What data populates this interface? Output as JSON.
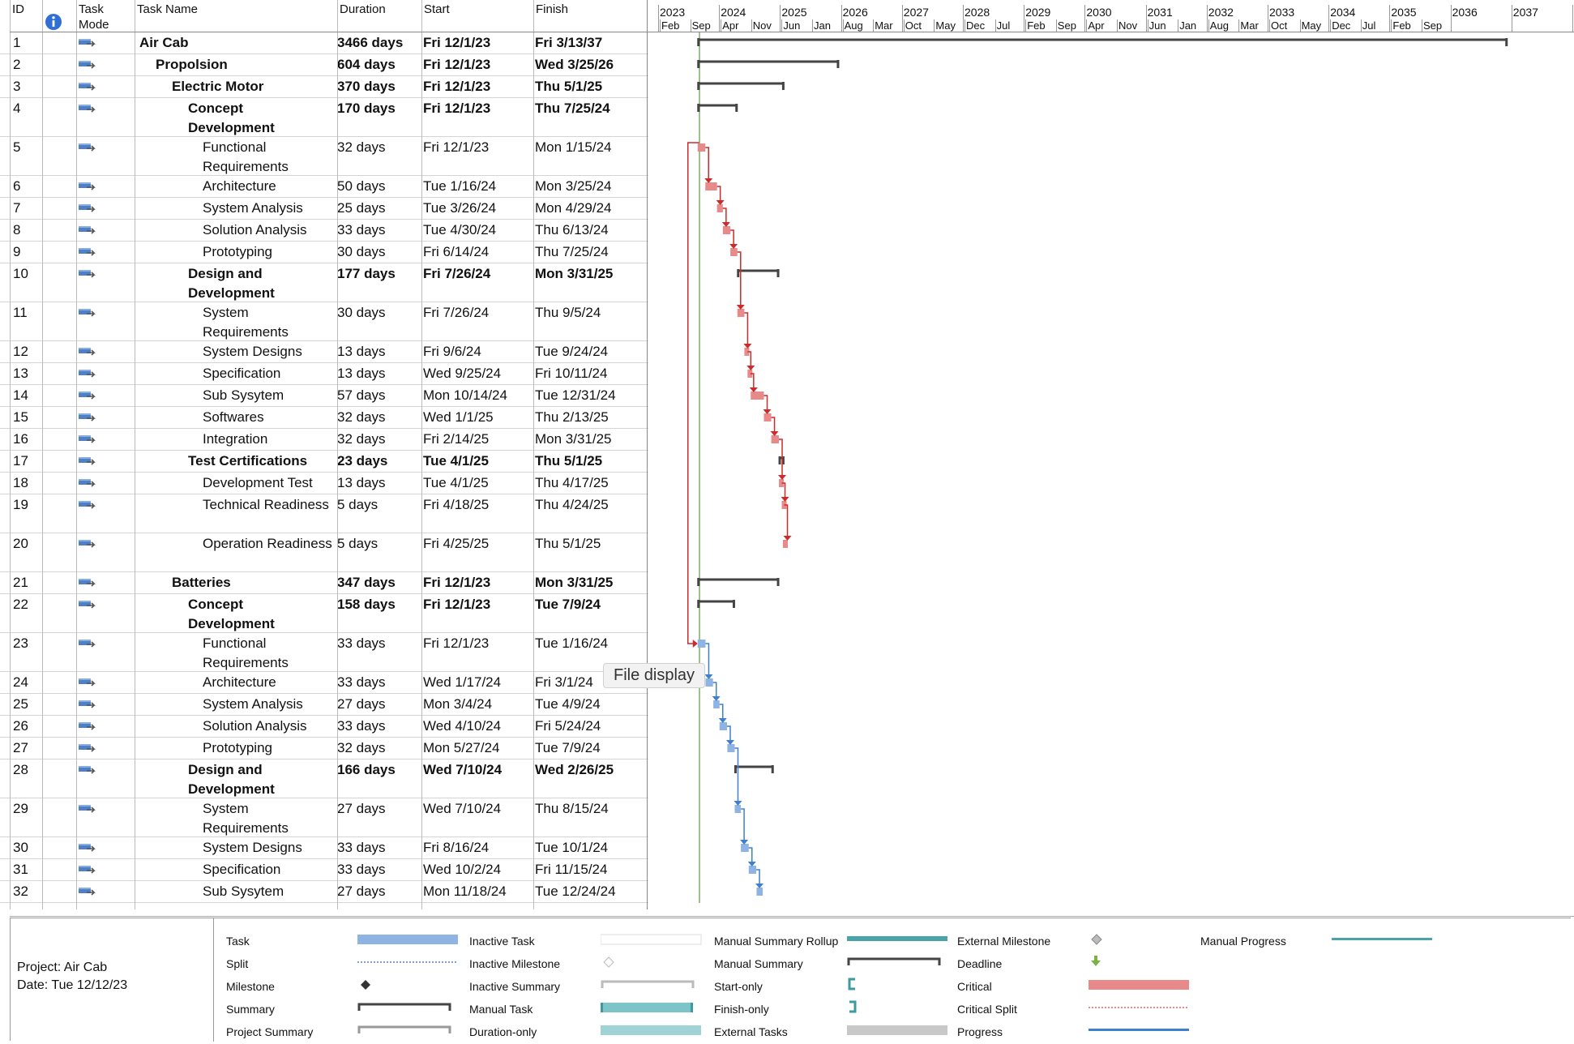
{
  "header": {
    "id": "ID",
    "task_mode_line1": "Task",
    "task_mode_line2": "Mode",
    "task_name": "Task Name",
    "duration": "Duration",
    "start": "Start",
    "finish": "Finish"
  },
  "timeline": {
    "years": [
      "2023",
      "2024",
      "2025",
      "2026",
      "2027",
      "2028",
      "2029",
      "2030",
      "2031",
      "2032",
      "2033",
      "2034",
      "2035",
      "2036",
      "2037",
      "203"
    ],
    "months": [
      "Feb",
      "Sep",
      "Apr",
      "Nov",
      "Jun",
      "Jan",
      "Aug",
      "Mar",
      "Oct",
      "May",
      "Dec",
      "Jul",
      "Feb",
      "Sep",
      "Apr",
      "Nov",
      "Jun",
      "Jan",
      "Aug",
      "Mar",
      "Oct",
      "May",
      "Dec",
      "Jul",
      "Feb",
      "Sep"
    ]
  },
  "tasks": [
    {
      "id": "1",
      "name_lines": [
        "Air Cab"
      ],
      "duration": "3466 days",
      "start": "Fri 12/1/23",
      "finish": "Fri 3/13/37",
      "level": 0,
      "summary": true
    },
    {
      "id": "2",
      "name_lines": [
        "Propolsion"
      ],
      "duration": "604 days",
      "start": "Fri 12/1/23",
      "finish": "Wed 3/25/26",
      "level": 1,
      "summary": true
    },
    {
      "id": "3",
      "name_lines": [
        "Electric Motor"
      ],
      "duration": "370 days",
      "start": "Fri 12/1/23",
      "finish": "Thu 5/1/25",
      "level": 2,
      "summary": true
    },
    {
      "id": "4",
      "name_lines": [
        "Concept Development"
      ],
      "duration": "170 days",
      "start": "Fri 12/1/23",
      "finish": "Thu 7/25/24",
      "level": 3,
      "summary": true,
      "tall": true
    },
    {
      "id": "5",
      "name_lines": [
        "Functional",
        "Requirements"
      ],
      "duration": "32 days",
      "start": "Fri 12/1/23",
      "finish": "Mon 1/15/24",
      "level": 4,
      "summary": false
    },
    {
      "id": "6",
      "name_lines": [
        "Architecture"
      ],
      "duration": "50 days",
      "start": "Tue 1/16/24",
      "finish": "Mon 3/25/24",
      "level": 4,
      "summary": false
    },
    {
      "id": "7",
      "name_lines": [
        "System Analysis"
      ],
      "duration": "25 days",
      "start": "Tue 3/26/24",
      "finish": "Mon 4/29/24",
      "level": 4,
      "summary": false
    },
    {
      "id": "8",
      "name_lines": [
        "Solution Analysis"
      ],
      "duration": "33 days",
      "start": "Tue 4/30/24",
      "finish": "Thu 6/13/24",
      "level": 4,
      "summary": false
    },
    {
      "id": "9",
      "name_lines": [
        "Prototyping"
      ],
      "duration": "30 days",
      "start": "Fri 6/14/24",
      "finish": "Thu 7/25/24",
      "level": 4,
      "summary": false
    },
    {
      "id": "10",
      "name_lines": [
        "Design and",
        "Development"
      ],
      "duration": "177 days",
      "start": "Fri 7/26/24",
      "finish": "Mon 3/31/25",
      "level": 3,
      "summary": true
    },
    {
      "id": "11",
      "name_lines": [
        "System",
        "Requirements"
      ],
      "duration": "30 days",
      "start": "Fri 7/26/24",
      "finish": "Thu 9/5/24",
      "level": 4,
      "summary": false
    },
    {
      "id": "12",
      "name_lines": [
        "System Designs"
      ],
      "duration": "13 days",
      "start": "Fri 9/6/24",
      "finish": "Tue 9/24/24",
      "level": 4,
      "summary": false
    },
    {
      "id": "13",
      "name_lines": [
        "Specification"
      ],
      "duration": "13 days",
      "start": "Wed 9/25/24",
      "finish": "Fri 10/11/24",
      "level": 4,
      "summary": false
    },
    {
      "id": "14",
      "name_lines": [
        "Sub Sysytem"
      ],
      "duration": "57 days",
      "start": "Mon 10/14/24",
      "finish": "Tue 12/31/24",
      "level": 4,
      "summary": false
    },
    {
      "id": "15",
      "name_lines": [
        "Softwares"
      ],
      "duration": "32 days",
      "start": "Wed 1/1/25",
      "finish": "Thu 2/13/25",
      "level": 4,
      "summary": false
    },
    {
      "id": "16",
      "name_lines": [
        "Integration"
      ],
      "duration": "32 days",
      "start": "Fri 2/14/25",
      "finish": "Mon 3/31/25",
      "level": 4,
      "summary": false
    },
    {
      "id": "17",
      "name_lines": [
        "Test Certifications"
      ],
      "duration": "23 days",
      "start": "Tue 4/1/25",
      "finish": "Thu 5/1/25",
      "level": 3,
      "summary": true
    },
    {
      "id": "18",
      "name_lines": [
        "Development Test"
      ],
      "duration": "13 days",
      "start": "Tue 4/1/25",
      "finish": "Thu 4/17/25",
      "level": 4,
      "summary": false
    },
    {
      "id": "19",
      "name_lines": [
        "Technical Readiness"
      ],
      "duration": "5 days",
      "start": "Fri 4/18/25",
      "finish": "Thu 4/24/25",
      "level": 4,
      "summary": false,
      "tall": true
    },
    {
      "id": "20",
      "name_lines": [
        "Operation Readiness"
      ],
      "duration": "5 days",
      "start": "Fri 4/25/25",
      "finish": "Thu 5/1/25",
      "level": 4,
      "summary": false,
      "tall": true
    },
    {
      "id": "21",
      "name_lines": [
        "Batteries"
      ],
      "duration": "347 days",
      "start": "Fri 12/1/23",
      "finish": "Mon 3/31/25",
      "level": 2,
      "summary": true
    },
    {
      "id": "22",
      "name_lines": [
        "Concept Development"
      ],
      "duration": "158 days",
      "start": "Fri 12/1/23",
      "finish": "Tue 7/9/24",
      "level": 3,
      "summary": true,
      "tall": true
    },
    {
      "id": "23",
      "name_lines": [
        "Functional",
        "Requirements"
      ],
      "duration": "33 days",
      "start": "Fri 12/1/23",
      "finish": "Tue 1/16/24",
      "level": 4,
      "summary": false
    },
    {
      "id": "24",
      "name_lines": [
        "Architecture"
      ],
      "duration": "33 days",
      "start": "Wed 1/17/24",
      "finish": "Fri 3/1/24",
      "level": 4,
      "summary": false
    },
    {
      "id": "25",
      "name_lines": [
        "System Analysis"
      ],
      "duration": "27 days",
      "start": "Mon 3/4/24",
      "finish": "Tue 4/9/24",
      "level": 4,
      "summary": false
    },
    {
      "id": "26",
      "name_lines": [
        "Solution Analysis"
      ],
      "duration": "33 days",
      "start": "Wed 4/10/24",
      "finish": "Fri 5/24/24",
      "level": 4,
      "summary": false
    },
    {
      "id": "27",
      "name_lines": [
        "Prototyping"
      ],
      "duration": "32 days",
      "start": "Mon 5/27/24",
      "finish": "Tue 7/9/24",
      "level": 4,
      "summary": false
    },
    {
      "id": "28",
      "name_lines": [
        "Design and",
        "Development"
      ],
      "duration": "166 days",
      "start": "Wed 7/10/24",
      "finish": "Wed 2/26/25",
      "level": 3,
      "summary": true
    },
    {
      "id": "29",
      "name_lines": [
        "System",
        "Requirements"
      ],
      "duration": "27 days",
      "start": "Wed 7/10/24",
      "finish": "Thu 8/15/24",
      "level": 4,
      "summary": false
    },
    {
      "id": "30",
      "name_lines": [
        "System Designs"
      ],
      "duration": "33 days",
      "start": "Fri 8/16/24",
      "finish": "Tue 10/1/24",
      "level": 4,
      "summary": false
    },
    {
      "id": "31",
      "name_lines": [
        "Specification"
      ],
      "duration": "33 days",
      "start": "Wed 10/2/24",
      "finish": "Fri 11/15/24",
      "level": 4,
      "summary": false
    },
    {
      "id": "32",
      "name_lines": [
        "Sub Sysytem"
      ],
      "duration": "27 days",
      "start": "Mon 11/18/24",
      "finish": "Tue 12/24/24",
      "level": 4,
      "summary": false
    }
  ],
  "critical_color": "#e88a8a",
  "critical_link_color": "#cc2b2b",
  "normal_color": "#8fb4e3",
  "normal_link_color": "#3f7fd0",
  "summary_color": "#444444",
  "tooltip": "File display",
  "legend": {
    "project": "Project: Air Cab",
    "date": "Date: Tue 12/12/23",
    "items": [
      "Task",
      "Split",
      "Milestone",
      "Summary",
      "Project Summary",
      "Inactive Task",
      "Inactive Milestone",
      "Inactive Summary",
      "Manual Task",
      "Duration-only",
      "Manual Summary Rollup",
      "Manual Summary",
      "Start-only",
      "Finish-only",
      "External Tasks",
      "External Milestone",
      "Deadline",
      "Critical",
      "Critical Split",
      "Progress",
      "Manual Progress"
    ]
  }
}
